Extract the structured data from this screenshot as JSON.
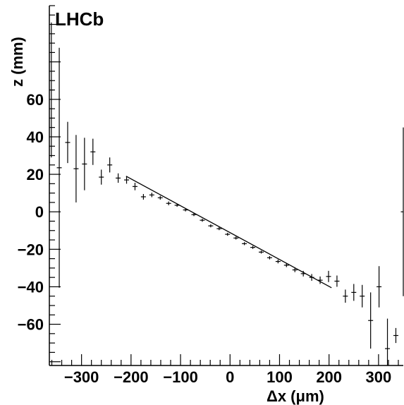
{
  "chart_data": {
    "type": "scatter",
    "label": "LHCb",
    "xlabel": "Δx (μm)",
    "ylabel": "z (mm)",
    "xlim": [
      -365,
      350
    ],
    "ylim": [
      -82,
      110
    ],
    "xticks": [
      -300,
      -200,
      -100,
      0,
      100,
      200,
      300
    ],
    "xtick_labels": [
      "−300",
      "−200",
      "−100",
      "0",
      "100",
      "200",
      "300"
    ],
    "yticks": [
      -60,
      -40,
      -20,
      0,
      20,
      40,
      60
    ],
    "ytick_labels": [
      "−60",
      "−40",
      "−20",
      "0",
      "20",
      "40",
      "60"
    ],
    "grid": false,
    "series": [
      {
        "type": "errorbars",
        "points": [
          {
            "x": -361,
            "y": 65,
            "yerr": 36,
            "xerr": 5
          },
          {
            "x": -345,
            "y": 23.5,
            "yerr": 64,
            "xerr": 5
          },
          {
            "x": -328,
            "y": 37,
            "yerr": 11,
            "xerr": 5
          },
          {
            "x": -311,
            "y": 23,
            "yerr": 18,
            "xerr": 5
          },
          {
            "x": -294,
            "y": 25.5,
            "yerr": 14,
            "xerr": 5
          },
          {
            "x": -277,
            "y": 32,
            "yerr": 7,
            "xerr": 5
          },
          {
            "x": -260,
            "y": 18.5,
            "yerr": 4,
            "xerr": 5
          },
          {
            "x": -243,
            "y": 25,
            "yerr": 4,
            "xerr": 5
          },
          {
            "x": -226,
            "y": 18,
            "yerr": 2.5,
            "xerr": 5
          },
          {
            "x": -209,
            "y": 17,
            "yerr": 2,
            "xerr": 5
          },
          {
            "x": -192,
            "y": 13.5,
            "yerr": 2,
            "xerr": 5
          },
          {
            "x": -175,
            "y": 8,
            "yerr": 1.5,
            "xerr": 5
          },
          {
            "x": -158,
            "y": 9,
            "yerr": 1.2,
            "xerr": 5
          },
          {
            "x": -141,
            "y": 7.5,
            "yerr": 1,
            "xerr": 5
          },
          {
            "x": -124,
            "y": 4.5,
            "yerr": 1,
            "xerr": 5
          },
          {
            "x": -107,
            "y": 3.5,
            "yerr": 0.8,
            "xerr": 5
          },
          {
            "x": -90,
            "y": 1,
            "yerr": 0.8,
            "xerr": 5
          },
          {
            "x": -73,
            "y": -1.5,
            "yerr": 0.8,
            "xerr": 5
          },
          {
            "x": -56,
            "y": -4.5,
            "yerr": 0.8,
            "xerr": 5
          },
          {
            "x": -39,
            "y": -7.5,
            "yerr": 0.8,
            "xerr": 5
          },
          {
            "x": -22,
            "y": -9,
            "yerr": 0.8,
            "xerr": 5
          },
          {
            "x": -5,
            "y": -12,
            "yerr": 0.8,
            "xerr": 5
          },
          {
            "x": 12,
            "y": -14,
            "yerr": 0.8,
            "xerr": 5
          },
          {
            "x": 29,
            "y": -17,
            "yerr": 0.8,
            "xerr": 5
          },
          {
            "x": 46,
            "y": -19,
            "yerr": 0.8,
            "xerr": 5
          },
          {
            "x": 63,
            "y": -21.5,
            "yerr": 0.8,
            "xerr": 5
          },
          {
            "x": 80,
            "y": -24.5,
            "yerr": 0.9,
            "xerr": 5
          },
          {
            "x": 97,
            "y": -26.5,
            "yerr": 1,
            "xerr": 5
          },
          {
            "x": 114,
            "y": -28.5,
            "yerr": 1,
            "xerr": 5
          },
          {
            "x": 131,
            "y": -31,
            "yerr": 1.2,
            "xerr": 5
          },
          {
            "x": 148,
            "y": -33,
            "yerr": 1.5,
            "xerr": 5
          },
          {
            "x": 165,
            "y": -35,
            "yerr": 1.8,
            "xerr": 5
          },
          {
            "x": 182,
            "y": -36.5,
            "yerr": 2,
            "xerr": 5
          },
          {
            "x": 199,
            "y": -34.5,
            "yerr": 3,
            "xerr": 5
          },
          {
            "x": 216,
            "y": -37,
            "yerr": 3,
            "xerr": 5
          },
          {
            "x": 233,
            "y": -45,
            "yerr": 3.5,
            "xerr": 5
          },
          {
            "x": 250,
            "y": -43,
            "yerr": 4.5,
            "xerr": 5
          },
          {
            "x": 267,
            "y": -45,
            "yerr": 6,
            "xerr": 5
          },
          {
            "x": 284,
            "y": -58,
            "yerr": 15,
            "xerr": 5
          },
          {
            "x": 301,
            "y": -40,
            "yerr": 11,
            "xerr": 5
          },
          {
            "x": 318,
            "y": -73,
            "yerr": 16,
            "xerr": 5
          },
          {
            "x": 335,
            "y": -66,
            "yerr": 4,
            "xerr": 5
          },
          {
            "x": 350,
            "y": 0,
            "yerr": 45,
            "xerr": 5
          }
        ]
      },
      {
        "type": "fit-line",
        "x": [
          -210,
          205
        ],
        "y": [
          19,
          -40.5
        ]
      }
    ]
  }
}
